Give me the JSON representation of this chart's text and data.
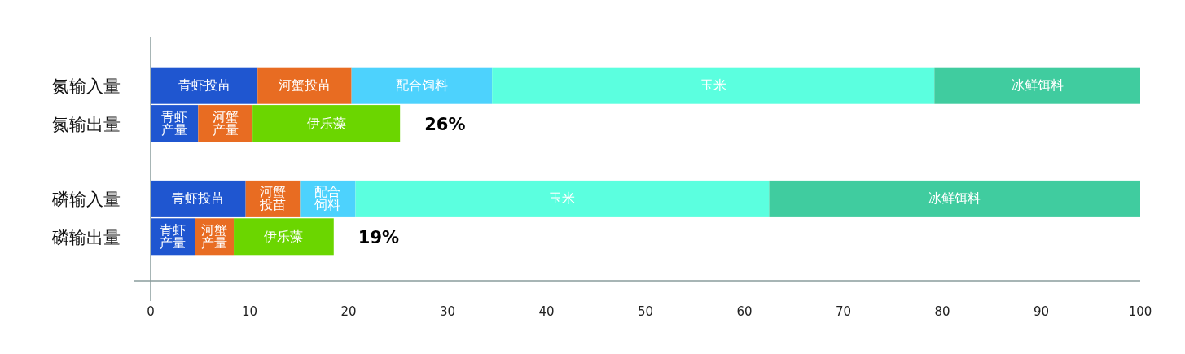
{
  "chart_data": {
    "type": "bar",
    "orientation": "horizontal",
    "stacked": true,
    "categories": [
      "氮输入量",
      "氮输出量",
      null,
      "磷输入量",
      "磷输出量"
    ],
    "series": [
      {
        "name": "青虾投苗",
        "color": "#1f56d0",
        "values": [
          10.8,
          null,
          null,
          9.6,
          null
        ]
      },
      {
        "name": "青虾产量",
        "color": "#1f56d0",
        "values": [
          null,
          4.8,
          null,
          null,
          4.5
        ]
      },
      {
        "name": "河蟹投苗",
        "color": "#e86c22",
        "values": [
          9.5,
          null,
          null,
          5.5,
          null
        ]
      },
      {
        "name": "河蟹产量",
        "color": "#e86c22",
        "values": [
          null,
          5.5,
          null,
          null,
          3.9
        ]
      },
      {
        "name": "配合饲料",
        "color": "#4dd2fd",
        "values": [
          14.2,
          null,
          null,
          5.6,
          null
        ]
      },
      {
        "name": "玉米",
        "color": "#5bffdf",
        "values": [
          44.7,
          null,
          null,
          41.8,
          null
        ]
      },
      {
        "name": "冰鲜饵料",
        "color": "#40cc9f",
        "values": [
          20.8,
          null,
          null,
          37.5,
          null
        ]
      },
      {
        "name": "伊乐藻",
        "color": "#6bd600",
        "values": [
          null,
          14.9,
          null,
          null,
          10.1
        ]
      }
    ],
    "xlim": [
      0,
      100
    ],
    "xticks": [
      0,
      10,
      20,
      30,
      40,
      50,
      60,
      70,
      80,
      90,
      100
    ],
    "annotations": [
      {
        "text": "26%",
        "x": 25.2,
        "y": "氮输出量"
      },
      {
        "text": "19%",
        "x": 18.5,
        "y": "磷输出量"
      }
    ]
  }
}
